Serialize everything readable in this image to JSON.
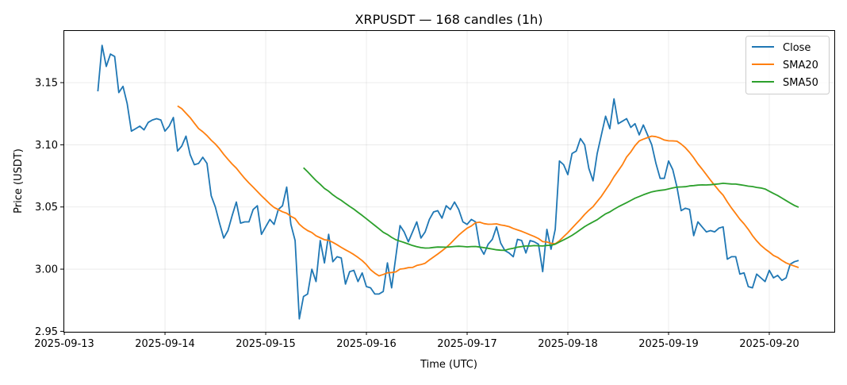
{
  "chart_data": {
    "type": "line",
    "title": "XRPUSDT — 168 candles (1h)",
    "xlabel": "Time (UTC)",
    "ylabel": "Price (USDT)",
    "x_start": "2025-09-13 08:00",
    "x_interval_hours": 1,
    "xlim_hours_from_2025-09-13": [
      -0.2,
      183.5
    ],
    "ylim": [
      2.9496,
      3.1922
    ],
    "grid": true,
    "legend_position": "top-right",
    "x_ticks": [
      {
        "label": "2025-09-13",
        "hours": 0
      },
      {
        "label": "2025-09-14",
        "hours": 24
      },
      {
        "label": "2025-09-15",
        "hours": 48
      },
      {
        "label": "2025-09-16",
        "hours": 72
      },
      {
        "label": "2025-09-17",
        "hours": 96
      },
      {
        "label": "2025-09-18",
        "hours": 120
      },
      {
        "label": "2025-09-19",
        "hours": 144
      },
      {
        "label": "2025-09-20",
        "hours": 168
      }
    ],
    "y_ticks": [
      {
        "label": "2.95",
        "value": 2.95
      },
      {
        "label": "3.00",
        "value": 3.0
      },
      {
        "label": "3.05",
        "value": 3.05
      },
      {
        "label": "3.10",
        "value": 3.1
      },
      {
        "label": "3.15",
        "value": 3.15
      }
    ],
    "series": [
      {
        "name": "Close",
        "color": "#1f77b4",
        "values": [
          3.143,
          3.18,
          3.163,
          3.173,
          3.171,
          3.142,
          3.147,
          3.133,
          3.111,
          3.113,
          3.115,
          3.112,
          3.118,
          3.12,
          3.121,
          3.12,
          3.111,
          3.115,
          3.122,
          3.095,
          3.099,
          3.107,
          3.092,
          3.084,
          3.085,
          3.09,
          3.085,
          3.059,
          3.05,
          3.037,
          3.025,
          3.031,
          3.043,
          3.054,
          3.037,
          3.038,
          3.038,
          3.048,
          3.051,
          3.028,
          3.034,
          3.04,
          3.036,
          3.048,
          3.051,
          3.066,
          3.036,
          3.023,
          2.96,
          2.978,
          2.98,
          3.0,
          2.99,
          3.023,
          3.005,
          3.028,
          3.006,
          3.01,
          3.009,
          2.988,
          2.998,
          2.999,
          2.99,
          2.997,
          2.986,
          2.985,
          2.98,
          2.98,
          2.982,
          3.005,
          2.985,
          3.01,
          3.035,
          3.03,
          3.022,
          3.03,
          3.038,
          3.025,
          3.03,
          3.04,
          3.046,
          3.047,
          3.041,
          3.051,
          3.048,
          3.054,
          3.048,
          3.038,
          3.036,
          3.04,
          3.038,
          3.018,
          3.012,
          3.02,
          3.024,
          3.034,
          3.021,
          3.015,
          3.013,
          3.01,
          3.024,
          3.023,
          3.013,
          3.023,
          3.022,
          3.02,
          2.998,
          3.032,
          3.016,
          3.032,
          3.087,
          3.084,
          3.076,
          3.093,
          3.095,
          3.105,
          3.1,
          3.081,
          3.071,
          3.093,
          3.108,
          3.123,
          3.113,
          3.137,
          3.117,
          3.119,
          3.121,
          3.114,
          3.117,
          3.108,
          3.116,
          3.108,
          3.1,
          3.085,
          3.073,
          3.073,
          3.087,
          3.08,
          3.066,
          3.047,
          3.049,
          3.048,
          3.027,
          3.038,
          3.034,
          3.03,
          3.031,
          3.03,
          3.033,
          3.034,
          3.008,
          3.01,
          3.01,
          2.996,
          2.997,
          2.986,
          2.985,
          2.996,
          2.993,
          2.99,
          2.999,
          2.993,
          2.995,
          2.991,
          2.993,
          3.004,
          3.006,
          3.007
        ]
      },
      {
        "name": "SMA20",
        "color": "#ff7f0e",
        "window": 20,
        "source": "Close"
      },
      {
        "name": "SMA50",
        "color": "#2ca02c",
        "window": 50,
        "source": "Close"
      }
    ]
  }
}
